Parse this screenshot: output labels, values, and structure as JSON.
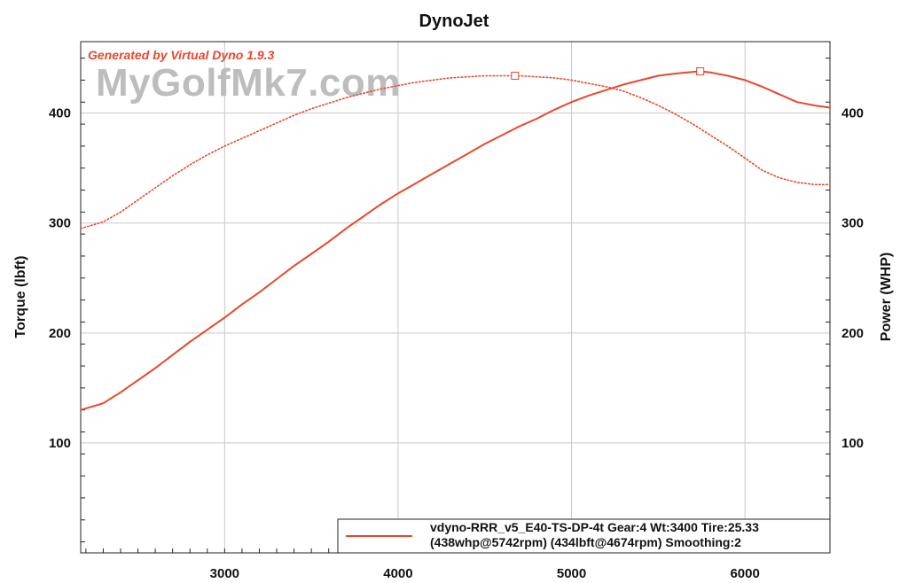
{
  "chart_data": {
    "type": "line",
    "title": "DynoJet",
    "generated_by": "Generated by Virtual Dyno 1.9.3",
    "watermark": "MyGolfMk7.com",
    "xlabel": "",
    "ylabel": "Torque (lbft)",
    "y2label": "Power (WHP)",
    "xlim": [
      2170,
      6490
    ],
    "ylim": [
      0,
      465
    ],
    "y2lim": [
      0,
      465
    ],
    "x_ticks": [
      3000,
      4000,
      5000,
      6000
    ],
    "y_ticks": [
      100,
      200,
      300,
      400
    ],
    "y2_ticks": [
      100,
      200,
      300,
      400
    ],
    "grid": true,
    "legend_position": "bottom-right",
    "legend_lines": [
      "vdyno-RRR_v5_E40-TS-DP-4t Gear:4 Wt:3400 Tire:25.33",
      "(438whp@5742rpm)  (434lbft@4674rpm)  Smoothing:2"
    ],
    "series": [
      {
        "name": "Power (WHP)",
        "axis": "right",
        "style": "solid",
        "color": "#e8482c",
        "peak": {
          "x": 5742,
          "y": 438
        },
        "x": [
          2170,
          2300,
          2400,
          2500,
          2600,
          2700,
          2800,
          2900,
          3000,
          3100,
          3200,
          3300,
          3400,
          3500,
          3600,
          3700,
          3800,
          3900,
          4000,
          4100,
          4200,
          4300,
          4400,
          4500,
          4600,
          4700,
          4800,
          4900,
          5000,
          5100,
          5200,
          5300,
          5400,
          5500,
          5600,
          5700,
          5742,
          5800,
          5900,
          6000,
          6100,
          6200,
          6300,
          6400,
          6490
        ],
        "y": [
          130,
          136,
          146,
          157,
          168,
          180,
          192,
          203,
          214,
          226,
          237,
          249,
          261,
          272,
          283,
          295,
          306,
          317,
          327,
          336,
          345,
          354,
          363,
          372,
          380,
          388,
          395,
          403,
          410,
          416,
          421,
          426,
          430,
          434,
          436,
          437.5,
          438,
          437,
          434,
          430,
          424,
          417,
          410,
          407,
          405
        ]
      },
      {
        "name": "Torque (lbft)",
        "axis": "left",
        "style": "dotted",
        "color": "#e8482c",
        "peak": {
          "x": 4674,
          "y": 434
        },
        "x": [
          2170,
          2300,
          2400,
          2500,
          2600,
          2700,
          2800,
          2900,
          3000,
          3100,
          3200,
          3300,
          3400,
          3500,
          3600,
          3700,
          3800,
          3900,
          4000,
          4100,
          4200,
          4300,
          4400,
          4500,
          4600,
          4674,
          4700,
          4800,
          4900,
          5000,
          5100,
          5200,
          5300,
          5400,
          5500,
          5600,
          5700,
          5800,
          5900,
          6000,
          6100,
          6200,
          6300,
          6400,
          6490
        ],
        "y": [
          295,
          301,
          310,
          321,
          332,
          343,
          353,
          362,
          370,
          377,
          384,
          391,
          398,
          404,
          409,
          414,
          418,
          422,
          425,
          428,
          430,
          432,
          433,
          434,
          434,
          434,
          434,
          433,
          432,
          430,
          427,
          424,
          420,
          414,
          407,
          399,
          390,
          380,
          370,
          359,
          348,
          341,
          337,
          335,
          335
        ]
      }
    ]
  }
}
